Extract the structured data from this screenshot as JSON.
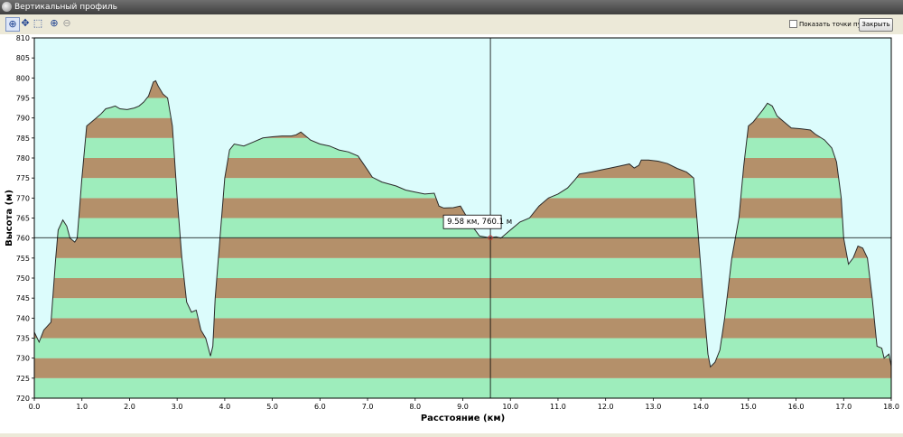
{
  "window": {
    "title": "Вертикальный профиль"
  },
  "toolbar": {
    "tools": [
      {
        "icon": "crosshair-icon",
        "glyph": "⊕",
        "active": true
      },
      {
        "icon": "move-icon",
        "glyph": "✥",
        "active": false
      },
      {
        "icon": "zoom-area-icon",
        "glyph": "⬚",
        "active": false
      },
      {
        "icon": "zoom-in-icon",
        "glyph": "⊕",
        "active": false
      },
      {
        "icon": "zoom-out-icon",
        "glyph": "⊖",
        "active": false
      }
    ],
    "show_waypoints_label": "Показать точки пути",
    "show_waypoints_checked": false,
    "close_label": "Закрыть"
  },
  "colors": {
    "band_green": "#9eedbc",
    "band_brown": "#b4906a",
    "plot_background": "#dcfcfc",
    "profile_line": "#2a2a2a",
    "cursor_line": "#000000"
  },
  "chart_data": {
    "type": "area",
    "title": "",
    "xlabel": "Расстояние   (км)",
    "ylabel": "Высота  (м)",
    "xlim": [
      0,
      18.0
    ],
    "ylim": [
      720,
      810
    ],
    "x_ticks": [
      "0.0",
      "1.0",
      "2.0",
      "3.0",
      "4.0",
      "5.0",
      "6.0",
      "7.0",
      "8.0",
      "9.0",
      "10.0",
      "11.0",
      "12.0",
      "13.0",
      "14.0",
      "15.0",
      "16.0",
      "17.0",
      "18.0"
    ],
    "y_ticks": [
      "720",
      "725",
      "730",
      "735",
      "740",
      "745",
      "750",
      "755",
      "760",
      "765",
      "770",
      "775",
      "780",
      "785",
      "790",
      "795",
      "800",
      "805",
      "810"
    ],
    "band_height": 5,
    "grid": false,
    "cursor": {
      "x": 9.58,
      "y": 760.1,
      "label": "9.58 км, 760.1 м"
    },
    "points": [
      [
        0.0,
        736.5
      ],
      [
        0.1,
        734
      ],
      [
        0.2,
        737
      ],
      [
        0.35,
        739
      ],
      [
        0.45,
        755
      ],
      [
        0.5,
        762
      ],
      [
        0.6,
        764.5
      ],
      [
        0.68,
        763
      ],
      [
        0.75,
        760
      ],
      [
        0.85,
        759
      ],
      [
        0.9,
        760
      ],
      [
        1.0,
        775
      ],
      [
        1.1,
        788
      ],
      [
        1.2,
        789
      ],
      [
        1.3,
        790
      ],
      [
        1.4,
        791
      ],
      [
        1.5,
        792.3
      ],
      [
        1.6,
        792.6
      ],
      [
        1.7,
        793
      ],
      [
        1.8,
        792.3
      ],
      [
        1.95,
        792.1
      ],
      [
        2.1,
        792.5
      ],
      [
        2.2,
        793
      ],
      [
        2.3,
        794
      ],
      [
        2.4,
        795.5
      ],
      [
        2.5,
        799
      ],
      [
        2.55,
        799.3
      ],
      [
        2.6,
        798
      ],
      [
        2.7,
        796
      ],
      [
        2.8,
        795
      ],
      [
        2.9,
        788
      ],
      [
        3.0,
        770
      ],
      [
        3.1,
        755
      ],
      [
        3.2,
        744
      ],
      [
        3.3,
        741.5
      ],
      [
        3.4,
        742
      ],
      [
        3.5,
        737
      ],
      [
        3.6,
        735
      ],
      [
        3.7,
        730.5
      ],
      [
        3.75,
        733
      ],
      [
        3.8,
        745
      ],
      [
        3.9,
        760
      ],
      [
        4.0,
        775
      ],
      [
        4.1,
        782
      ],
      [
        4.2,
        783.5
      ],
      [
        4.4,
        783
      ],
      [
        4.6,
        784
      ],
      [
        4.8,
        785
      ],
      [
        5.0,
        785.3
      ],
      [
        5.2,
        785.5
      ],
      [
        5.4,
        785.5
      ],
      [
        5.5,
        785.8
      ],
      [
        5.6,
        786.5
      ],
      [
        5.7,
        785.5
      ],
      [
        5.8,
        784.5
      ],
      [
        6.0,
        783.5
      ],
      [
        6.2,
        783
      ],
      [
        6.4,
        782
      ],
      [
        6.6,
        781.5
      ],
      [
        6.8,
        780.5
      ],
      [
        7.0,
        777
      ],
      [
        7.1,
        775.2
      ],
      [
        7.3,
        774
      ],
      [
        7.6,
        773
      ],
      [
        7.8,
        772
      ],
      [
        8.0,
        771.5
      ],
      [
        8.2,
        771
      ],
      [
        8.4,
        771.2
      ],
      [
        8.5,
        768
      ],
      [
        8.6,
        767.5
      ],
      [
        8.8,
        767.6
      ],
      [
        8.95,
        768
      ],
      [
        9.05,
        766
      ],
      [
        9.2,
        763
      ],
      [
        9.35,
        760.5
      ],
      [
        9.5,
        760.2
      ],
      [
        9.58,
        760.1
      ],
      [
        9.7,
        760.3
      ],
      [
        9.8,
        760
      ],
      [
        10.0,
        762
      ],
      [
        10.2,
        764
      ],
      [
        10.4,
        765
      ],
      [
        10.6,
        768
      ],
      [
        10.8,
        770
      ],
      [
        11.0,
        771
      ],
      [
        11.2,
        772.5
      ],
      [
        11.35,
        774.5
      ],
      [
        11.45,
        776
      ],
      [
        11.7,
        776.5
      ],
      [
        11.9,
        777
      ],
      [
        12.1,
        777.5
      ],
      [
        12.3,
        778
      ],
      [
        12.5,
        778.5
      ],
      [
        12.6,
        777.5
      ],
      [
        12.7,
        778.2
      ],
      [
        12.75,
        779.5
      ],
      [
        12.9,
        779.5
      ],
      [
        13.1,
        779.2
      ],
      [
        13.3,
        778.6
      ],
      [
        13.5,
        777.4
      ],
      [
        13.7,
        776.5
      ],
      [
        13.85,
        775
      ],
      [
        13.95,
        760
      ],
      [
        14.05,
        745
      ],
      [
        14.15,
        731
      ],
      [
        14.2,
        727.8
      ],
      [
        14.3,
        729
      ],
      [
        14.4,
        732
      ],
      [
        14.5,
        740
      ],
      [
        14.65,
        755
      ],
      [
        14.8,
        765
      ],
      [
        14.9,
        778
      ],
      [
        15.0,
        788
      ],
      [
        15.1,
        789
      ],
      [
        15.2,
        790.5
      ],
      [
        15.3,
        792
      ],
      [
        15.4,
        793.7
      ],
      [
        15.5,
        793
      ],
      [
        15.6,
        790.5
      ],
      [
        15.75,
        789
      ],
      [
        15.9,
        787.5
      ],
      [
        16.1,
        787.3
      ],
      [
        16.3,
        787
      ],
      [
        16.4,
        786
      ],
      [
        16.6,
        784.5
      ],
      [
        16.75,
        782.5
      ],
      [
        16.85,
        779
      ],
      [
        16.95,
        770
      ],
      [
        17.0,
        760
      ],
      [
        17.1,
        753.5
      ],
      [
        17.2,
        755
      ],
      [
        17.3,
        758
      ],
      [
        17.4,
        757.5
      ],
      [
        17.5,
        755
      ],
      [
        17.6,
        745
      ],
      [
        17.7,
        733
      ],
      [
        17.8,
        732.5
      ],
      [
        17.85,
        730
      ],
      [
        17.95,
        731
      ],
      [
        18.0,
        728
      ]
    ]
  }
}
